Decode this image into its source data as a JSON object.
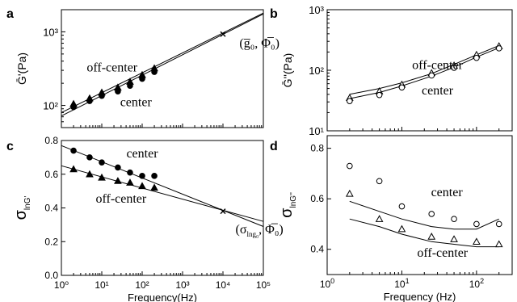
{
  "figure": {
    "panel_labels": [
      "a",
      "b",
      "c",
      "d"
    ]
  },
  "chart_data": [
    {
      "panel": "a",
      "type": "scatter",
      "ylabel": "Ḡ'(Pa)",
      "xlabel": "",
      "x_scale": "log",
      "y_scale": "log",
      "xlim": [
        1,
        100000
      ],
      "ylim": [
        50,
        2000
      ],
      "x_ticks": [
        1,
        10,
        100,
        1000,
        10000,
        100000
      ],
      "y_ticks": [
        100,
        1000
      ],
      "y_tick_labels": [
        "10²",
        "10³"
      ],
      "show_x_tick_labels": false,
      "series": [
        {
          "name": "off-center",
          "marker": "triangle-filled",
          "x": [
            2,
            5,
            10,
            25,
            50,
            100,
            200
          ],
          "y": [
            105,
            125,
            150,
            175,
            210,
            260,
            320
          ],
          "fit": {
            "x": [
              1,
              100000
            ],
            "y": [
              80,
              1800
            ]
          }
        },
        {
          "name": "center",
          "marker": "circle-filled",
          "x": [
            2,
            5,
            10,
            25,
            50,
            100,
            200
          ],
          "y": [
            95,
            115,
            135,
            155,
            185,
            230,
            285
          ],
          "fit": {
            "x": [
              1,
              100000
            ],
            "y": [
              72,
              1750
            ]
          }
        }
      ],
      "extrapolated_point": {
        "x": 10000,
        "y": 930,
        "marker": "x"
      },
      "annotations": [
        {
          "text": "off-center",
          "x": 18,
          "y": 290
        },
        {
          "text": "center",
          "x": 70,
          "y": 98
        },
        {
          "text": "(g̅₀, Φ̅₀)",
          "x": 80000,
          "y": 620
        }
      ]
    },
    {
      "panel": "b",
      "type": "scatter",
      "ylabel": "Ḡ''(Pa)",
      "xlabel": "",
      "x_scale": "log",
      "y_scale": "log",
      "xlim": [
        1,
        300
      ],
      "ylim": [
        10,
        1000
      ],
      "x_ticks": [
        1,
        10,
        100
      ],
      "y_ticks": [
        10,
        100,
        1000
      ],
      "y_tick_labels": [
        "10¹",
        "10²",
        "10³"
      ],
      "show_x_tick_labels": false,
      "series": [
        {
          "name": "off-center",
          "marker": "triangle-open",
          "x": [
            2,
            5,
            10,
            25,
            50,
            100,
            200
          ],
          "y": [
            35,
            45,
            58,
            90,
            120,
            180,
            250
          ],
          "fit": {
            "x": [
              2,
              5,
              10,
              25,
              50,
              100,
              200
            ],
            "y": [
              40,
              50,
              62,
              88,
              125,
              180,
              255
            ]
          }
        },
        {
          "name": "center",
          "marker": "circle-open",
          "x": [
            2,
            5,
            10,
            25,
            50,
            100,
            200
          ],
          "y": [
            31,
            39,
            52,
            82,
            110,
            160,
            230
          ],
          "fit": {
            "x": [
              2,
              5,
              10,
              25,
              50,
              100,
              200
            ],
            "y": [
              34,
              43,
              55,
              80,
              112,
              165,
              235
            ]
          }
        }
      ],
      "annotations": [
        {
          "text": "off-center",
          "x": 30,
          "y": 105
        },
        {
          "text": "center",
          "x": 30,
          "y": 40
        }
      ]
    },
    {
      "panel": "c",
      "type": "scatter",
      "ylabel": "σ",
      "ylabel_sub": "lnG'",
      "xlabel": "Frequency(Hz)",
      "x_scale": "log",
      "y_scale": "linear",
      "xlim": [
        1,
        100000
      ],
      "ylim": [
        0,
        0.8
      ],
      "x_ticks": [
        1,
        10,
        100,
        1000,
        10000,
        100000
      ],
      "x_tick_labels": [
        "10⁰",
        "10¹",
        "10²",
        "10³",
        "10⁴",
        "10⁵"
      ],
      "y_ticks": [
        0.0,
        0.2,
        0.4,
        0.6,
        0.8
      ],
      "y_tick_labels": [
        "0.0",
        "0.2",
        "0.4",
        "0.6",
        "0.8"
      ],
      "series": [
        {
          "name": "center",
          "marker": "circle-filled",
          "x": [
            2,
            5,
            10,
            25,
            50,
            100,
            200
          ],
          "y": [
            0.74,
            0.7,
            0.67,
            0.64,
            0.61,
            0.59,
            0.59
          ],
          "fit": {
            "x": [
              1,
              100000
            ],
            "y": [
              0.77,
              0.29
            ]
          }
        },
        {
          "name": "off-center",
          "marker": "triangle-filled",
          "x": [
            2,
            5,
            10,
            25,
            50,
            100,
            200
          ],
          "y": [
            0.63,
            0.6,
            0.58,
            0.56,
            0.55,
            0.53,
            0.52
          ],
          "fit": {
            "x": [
              1,
              100000
            ],
            "y": [
              0.65,
              0.32
            ]
          }
        }
      ],
      "extrapolated_point": {
        "x": 10000,
        "y": 0.38,
        "marker": "x"
      },
      "annotations": [
        {
          "text": "center",
          "x": 100,
          "y": 0.7
        },
        {
          "text": "off-center",
          "x": 30,
          "y": 0.43
        }
      ],
      "point_label": {
        "prefix": "(σ",
        "sub": "lng₀",
        "suffix": ", Φ̅₀)",
        "x": 80000,
        "y": 0.25
      }
    },
    {
      "panel": "d",
      "type": "scatter",
      "ylabel": "σ",
      "ylabel_sub": "lnG''",
      "xlabel": "Frequency (Hz)",
      "x_scale": "log",
      "y_scale": "linear",
      "xlim": [
        1,
        300
      ],
      "ylim": [
        0.3,
        0.85
      ],
      "x_ticks": [
        1,
        10,
        100
      ],
      "x_tick_labels": [
        "10",
        "10",
        "10"
      ],
      "x_tick_exponents": [
        "0",
        "1",
        "2"
      ],
      "y_ticks": [
        0.4,
        0.6,
        0.8
      ],
      "y_tick_labels": [
        "0.4",
        "0.6",
        "0.8"
      ],
      "series": [
        {
          "name": "center",
          "marker": "circle-open",
          "x": [
            2,
            5,
            10,
            25,
            50,
            100,
            200
          ],
          "y": [
            0.73,
            0.67,
            0.57,
            0.54,
            0.52,
            0.5,
            0.5
          ],
          "fit": {
            "x": [
              2,
              5,
              10,
              25,
              50,
              100,
              200
            ],
            "y": [
              0.59,
              0.55,
              0.52,
              0.49,
              0.48,
              0.48,
              0.52
            ]
          }
        },
        {
          "name": "off-center",
          "marker": "triangle-open",
          "x": [
            2,
            5,
            10,
            25,
            50,
            100,
            200
          ],
          "y": [
            0.62,
            0.52,
            0.48,
            0.45,
            0.44,
            0.43,
            0.42
          ],
          "fit": {
            "x": [
              2,
              5,
              10,
              25,
              50,
              100,
              200
            ],
            "y": [
              0.52,
              0.49,
              0.46,
              0.43,
              0.42,
              0.41,
              0.41
            ]
          }
        }
      ],
      "annotations": [
        {
          "text": "center",
          "x": 40,
          "y": 0.61
        },
        {
          "text": "off-center",
          "x": 35,
          "y": 0.37
        }
      ]
    }
  ]
}
